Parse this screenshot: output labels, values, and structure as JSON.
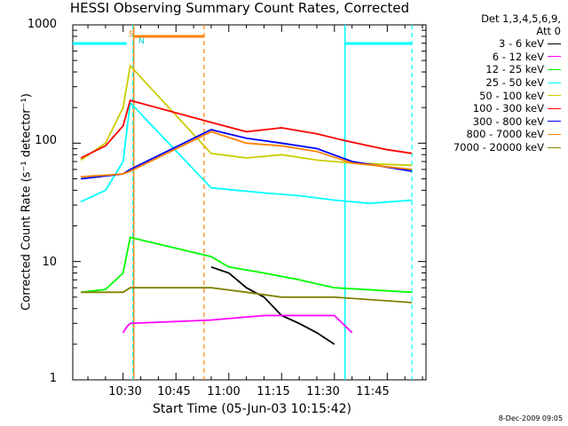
{
  "chart_data": {
    "type": "line",
    "title": "HESSI Observing Summary Count Rates, Corrected",
    "xlabel": "Start Time (05-Jun-03 10:15:42)",
    "ylabel": "Corrected Count Rate (s⁻¹ detector⁻¹)",
    "yscale": "log",
    "ylim": [
      1,
      1000
    ],
    "xlim": [
      "10:15:42",
      "11:56"
    ],
    "xticks": [
      "10:30",
      "10:45",
      "11:00",
      "11:15",
      "11:30",
      "11:45"
    ],
    "yticks": [
      "1",
      "10",
      "100",
      "1000"
    ],
    "legend_header": [
      "Det 1,3,4,5,6,9,",
      "Att 0"
    ],
    "legend_placement": "right outside",
    "markers": [
      {
        "label": "S",
        "time": "10:31",
        "color": "#ff8000"
      },
      {
        "label": "N",
        "time": "10:32",
        "color": "#00cccc"
      }
    ],
    "regions": [
      {
        "name": "saa",
        "start": "10:33",
        "end": "10:53"
      },
      {
        "name": "night",
        "start": "11:33",
        "end": "11:52"
      }
    ],
    "series": [
      {
        "name": "3 - 6 keV",
        "color": "#000000",
        "x": [
          "10:55",
          "11:00",
          "11:05",
          "11:10",
          "11:15",
          "11:20",
          "11:25",
          "11:30"
        ],
        "y": [
          9,
          8,
          6,
          5,
          3.5,
          3,
          2.5,
          2
        ]
      },
      {
        "name": "6 - 12 keV",
        "color": "#ff00ff",
        "x": [
          "10:30",
          "10:31",
          "10:32",
          "10:55",
          "11:10",
          "11:30",
          "11:35"
        ],
        "y": [
          2.5,
          2.8,
          3,
          3.2,
          3.5,
          3.5,
          2.5
        ]
      },
      {
        "name": "12 - 25 keV",
        "color": "#00ff00",
        "x": [
          "10:18",
          "10:25",
          "10:30",
          "10:32",
          "10:55",
          "11:00",
          "11:10",
          "11:20",
          "11:30",
          "11:52"
        ],
        "y": [
          5.5,
          5.8,
          8,
          16,
          11,
          9,
          8,
          7,
          6,
          5.5
        ]
      },
      {
        "name": "25 - 50 keV",
        "color": "#00ffff",
        "x": [
          "10:18",
          "10:25",
          "10:30",
          "10:32",
          "10:55",
          "11:10",
          "11:20",
          "11:30",
          "11:40",
          "11:52"
        ],
        "y": [
          32,
          40,
          70,
          220,
          42,
          38,
          36,
          33,
          31,
          33
        ]
      },
      {
        "name": "50 - 100 keV",
        "color": "#cccc00",
        "x": [
          "10:18",
          "10:25",
          "10:30",
          "10:32",
          "10:55",
          "11:05",
          "11:15",
          "11:25",
          "11:35",
          "11:52"
        ],
        "y": [
          72,
          100,
          200,
          450,
          82,
          75,
          80,
          72,
          68,
          65
        ]
      },
      {
        "name": "100 - 300 keV",
        "color": "#ff0000",
        "x": [
          "10:18",
          "10:25",
          "10:30",
          "10:32",
          "10:55",
          "11:05",
          "11:15",
          "11:25",
          "11:33",
          "11:45",
          "11:52"
        ],
        "y": [
          75,
          95,
          140,
          230,
          150,
          125,
          135,
          120,
          105,
          88,
          82
        ]
      },
      {
        "name": "300 - 800 keV",
        "color": "#0000ff",
        "x": [
          "10:18",
          "10:30",
          "10:32",
          "10:55",
          "11:05",
          "11:15",
          "11:25",
          "11:35",
          "11:52"
        ],
        "y": [
          50,
          55,
          60,
          130,
          110,
          100,
          90,
          70,
          58
        ]
      },
      {
        "name": "800 - 7000 keV",
        "color": "#ff8000",
        "x": [
          "10:18",
          "10:30",
          "10:32",
          "10:55",
          "11:05",
          "11:15",
          "11:25",
          "11:35",
          "11:52"
        ],
        "y": [
          52,
          55,
          58,
          125,
          100,
          95,
          85,
          68,
          60
        ]
      },
      {
        "name": "7000 - 20000 keV",
        "color": "#808000",
        "x": [
          "10:18",
          "10:30",
          "10:32",
          "10:55",
          "11:05",
          "11:15",
          "11:30",
          "11:52"
        ],
        "y": [
          5.5,
          5.5,
          6,
          6,
          5.5,
          5,
          5,
          4.5
        ]
      }
    ],
    "timestamp": "8-Dec-2009 09:05"
  }
}
